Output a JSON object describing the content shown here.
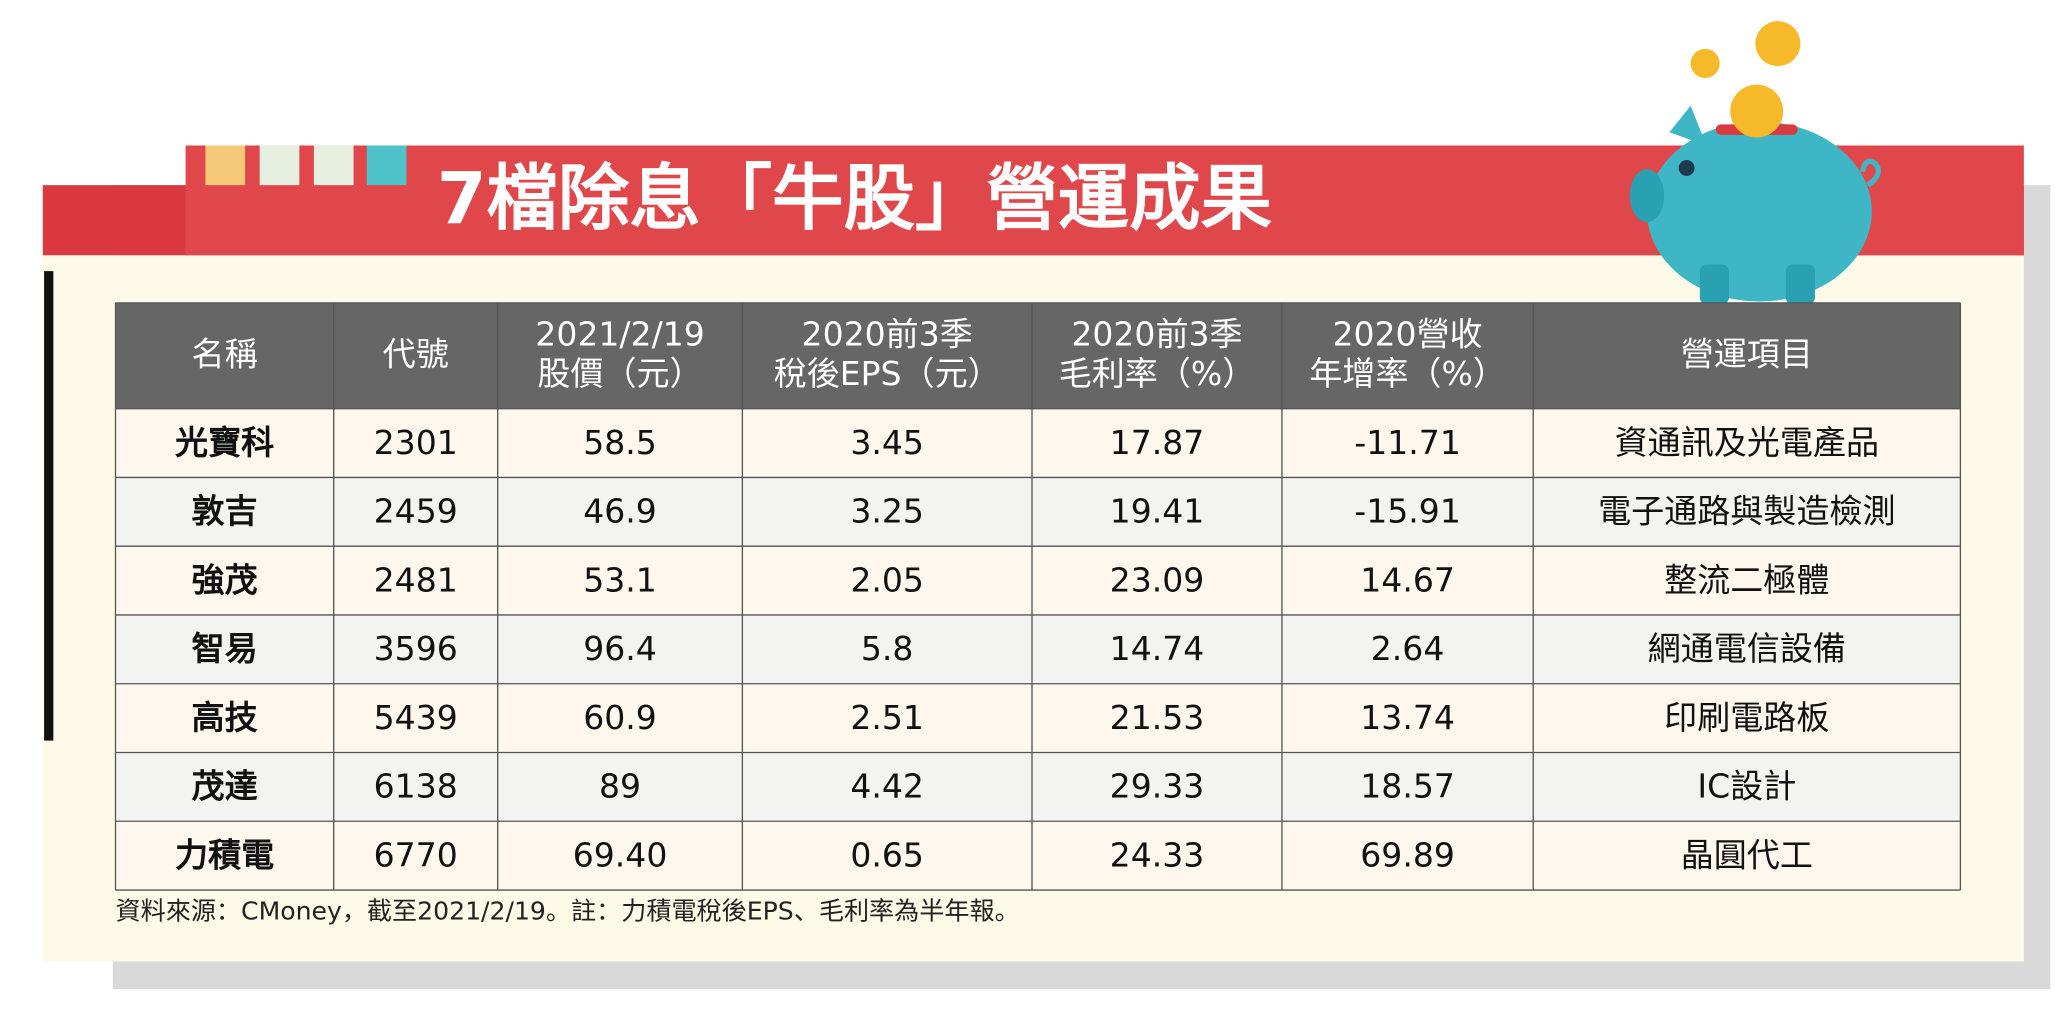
{
  "title": "7檔除息「牛股」營運成果",
  "table": {
    "header": [
      [
        "名稱"
      ],
      [
        "代號"
      ],
      [
        "2021/2/19",
        "股價（元）"
      ],
      [
        "2020前3季",
        "稅後EPS（元）"
      ],
      [
        "2020前3季",
        "毛利率（%）"
      ],
      [
        "2020營收",
        "年增率（%）"
      ],
      [
        "營運項目"
      ]
    ],
    "rows": [
      [
        "光寶科",
        "2301",
        "58.5",
        "3.45",
        "17.87",
        "-11.71",
        "資通訊及光電產品"
      ],
      [
        "敦吉",
        "2459",
        "46.9",
        "3.25",
        "19.41",
        "-15.91",
        "電子通路與製造檢測"
      ],
      [
        "強茂",
        "2481",
        "53.1",
        "2.05",
        "23.09",
        "14.67",
        "整流二極體"
      ],
      [
        "智易",
        "3596",
        "96.4",
        "5.8",
        "14.74",
        "2.64",
        "網通電信設備"
      ],
      [
        "高技",
        "5439",
        "60.9",
        "2.51",
        "21.53",
        "13.74",
        "印刷電路板"
      ],
      [
        "茂達",
        "6138",
        "89",
        "4.42",
        "29.33",
        "18.57",
        "IC設計"
      ],
      [
        "力積電",
        "6770",
        "69.40",
        "0.65",
        "24.33",
        "69.89",
        "晶圓代工"
      ]
    ]
  },
  "footnote": "資料來源：CMoney，截至2021/2/19。註：力積電稅後EPS、毛利率為半年報。"
}
